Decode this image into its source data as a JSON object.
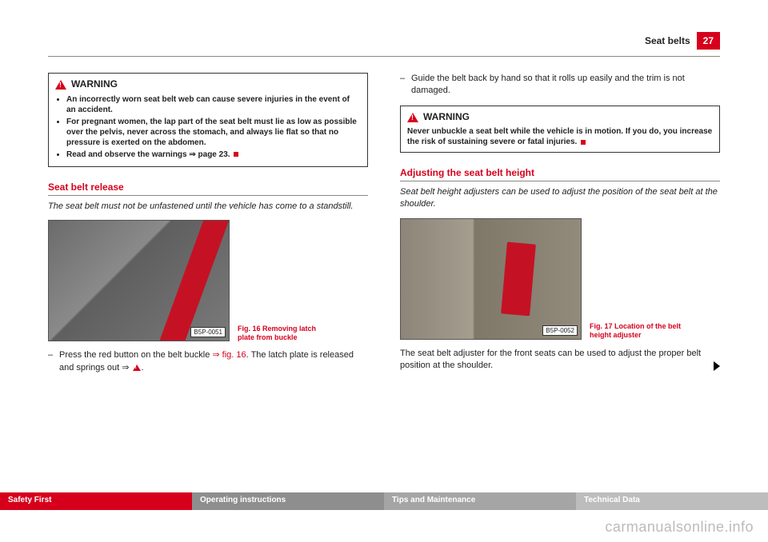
{
  "header": {
    "section": "Seat belts",
    "page": "27"
  },
  "warning1": {
    "label": "WARNING",
    "items": [
      "An incorrectly worn seat belt web can cause severe injuries in the event of an accident.",
      "For pregnant women, the lap part of the seat belt must lie as low as possible over the pelvis, never across the stomach, and always lie flat so that no pressure is exerted on the abdomen.",
      "Read and observe the warnings ⇒ page 23."
    ]
  },
  "left": {
    "title": "Seat belt release",
    "lead": "The seat belt must not be unfastened until the vehicle has come to a standstill.",
    "figLabel": "B5P-0051",
    "figCaption": "Fig. 16   Removing latch plate from buckle",
    "stepA": "Press the red button on the belt buckle ",
    "stepRef": "⇒ fig. 16",
    "stepB": ". The latch plate is released and springs out ⇒ ",
    "stepC": "."
  },
  "right": {
    "step2": "Guide the belt back by hand so that it rolls up easily and the trim is not damaged.",
    "warningLabel": "WARNING",
    "warningText": "Never unbuckle a seat belt while the vehicle is in motion. If you do, you increase the risk of sustaining severe or fatal injuries.",
    "title": "Adjusting the seat belt height",
    "lead": "Seat belt height adjusters can be used to adjust the position of the seat belt at the shoulder.",
    "figLabel": "B5P-0052",
    "figCaption": "Fig. 17   Location of the belt height adjuster",
    "para": "The seat belt adjuster for the front seats can be used to adjust the proper belt position at the shoulder."
  },
  "footer": {
    "a": "Safety First",
    "b": "Operating instructions",
    "c": "Tips and Maintenance",
    "d": "Technical Data"
  },
  "watermark": "carmanualsonline.info"
}
